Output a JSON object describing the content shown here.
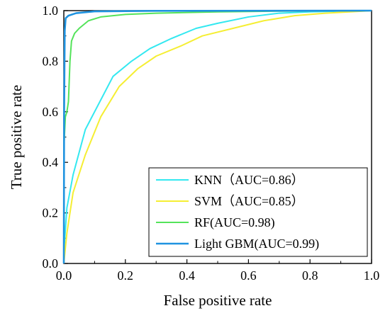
{
  "chart_data": {
    "type": "line",
    "xlabel": "False positive rate",
    "ylabel": "True positive rate",
    "xlim": [
      0.0,
      1.0
    ],
    "ylim": [
      0.0,
      1.0
    ],
    "xticks": [
      "0.0",
      "0.2",
      "0.4",
      "0.6",
      "0.8",
      "1.0"
    ],
    "yticks": [
      "0.0",
      "0.2",
      "0.4",
      "0.6",
      "0.8",
      "1.0"
    ],
    "grid": false,
    "legend_position": "bottom-right",
    "series": [
      {
        "name": "KNN（AUC=0.86）",
        "color": "#33e8f0",
        "points": [
          [
            0,
            0
          ],
          [
            0.002,
            0.08
          ],
          [
            0.01,
            0.22
          ],
          [
            0.03,
            0.35
          ],
          [
            0.07,
            0.53
          ],
          [
            0.1,
            0.6
          ],
          [
            0.16,
            0.74
          ],
          [
            0.22,
            0.8
          ],
          [
            0.28,
            0.85
          ],
          [
            0.35,
            0.89
          ],
          [
            0.43,
            0.93
          ],
          [
            0.5,
            0.95
          ],
          [
            0.6,
            0.975
          ],
          [
            0.7,
            0.99
          ],
          [
            0.8,
            0.995
          ],
          [
            0.9,
            0.998
          ],
          [
            1.0,
            1.0
          ]
        ]
      },
      {
        "name": "SVM（AUC=0.85）",
        "color": "#f5ee33",
        "points": [
          [
            0,
            0
          ],
          [
            0.01,
            0.12
          ],
          [
            0.03,
            0.28
          ],
          [
            0.07,
            0.43
          ],
          [
            0.12,
            0.58
          ],
          [
            0.18,
            0.7
          ],
          [
            0.24,
            0.77
          ],
          [
            0.3,
            0.82
          ],
          [
            0.38,
            0.86
          ],
          [
            0.45,
            0.9
          ],
          [
            0.55,
            0.93
          ],
          [
            0.65,
            0.96
          ],
          [
            0.75,
            0.98
          ],
          [
            0.85,
            0.99
          ],
          [
            0.93,
            0.995
          ],
          [
            1.0,
            1.0
          ]
        ]
      },
      {
        "name": "RF(AUC=0.98)",
        "color": "#54e35a",
        "points": [
          [
            0,
            0
          ],
          [
            0.001,
            0.48
          ],
          [
            0.005,
            0.58
          ],
          [
            0.01,
            0.6
          ],
          [
            0.015,
            0.64
          ],
          [
            0.02,
            0.8
          ],
          [
            0.025,
            0.88
          ],
          [
            0.035,
            0.91
          ],
          [
            0.05,
            0.93
          ],
          [
            0.08,
            0.96
          ],
          [
            0.12,
            0.975
          ],
          [
            0.2,
            0.985
          ],
          [
            0.3,
            0.99
          ],
          [
            0.5,
            0.995
          ],
          [
            0.7,
            0.998
          ],
          [
            1.0,
            1.0
          ]
        ]
      },
      {
        "name": "Light GBM(AUC=0.99)",
        "color": "#1f93e0",
        "points": [
          [
            0,
            0
          ],
          [
            0.001,
            0.6
          ],
          [
            0.003,
            0.92
          ],
          [
            0.006,
            0.97
          ],
          [
            0.015,
            0.98
          ],
          [
            0.04,
            0.99
          ],
          [
            0.1,
            0.997
          ],
          [
            0.3,
            0.999
          ],
          [
            1.0,
            1.0
          ]
        ]
      }
    ]
  }
}
